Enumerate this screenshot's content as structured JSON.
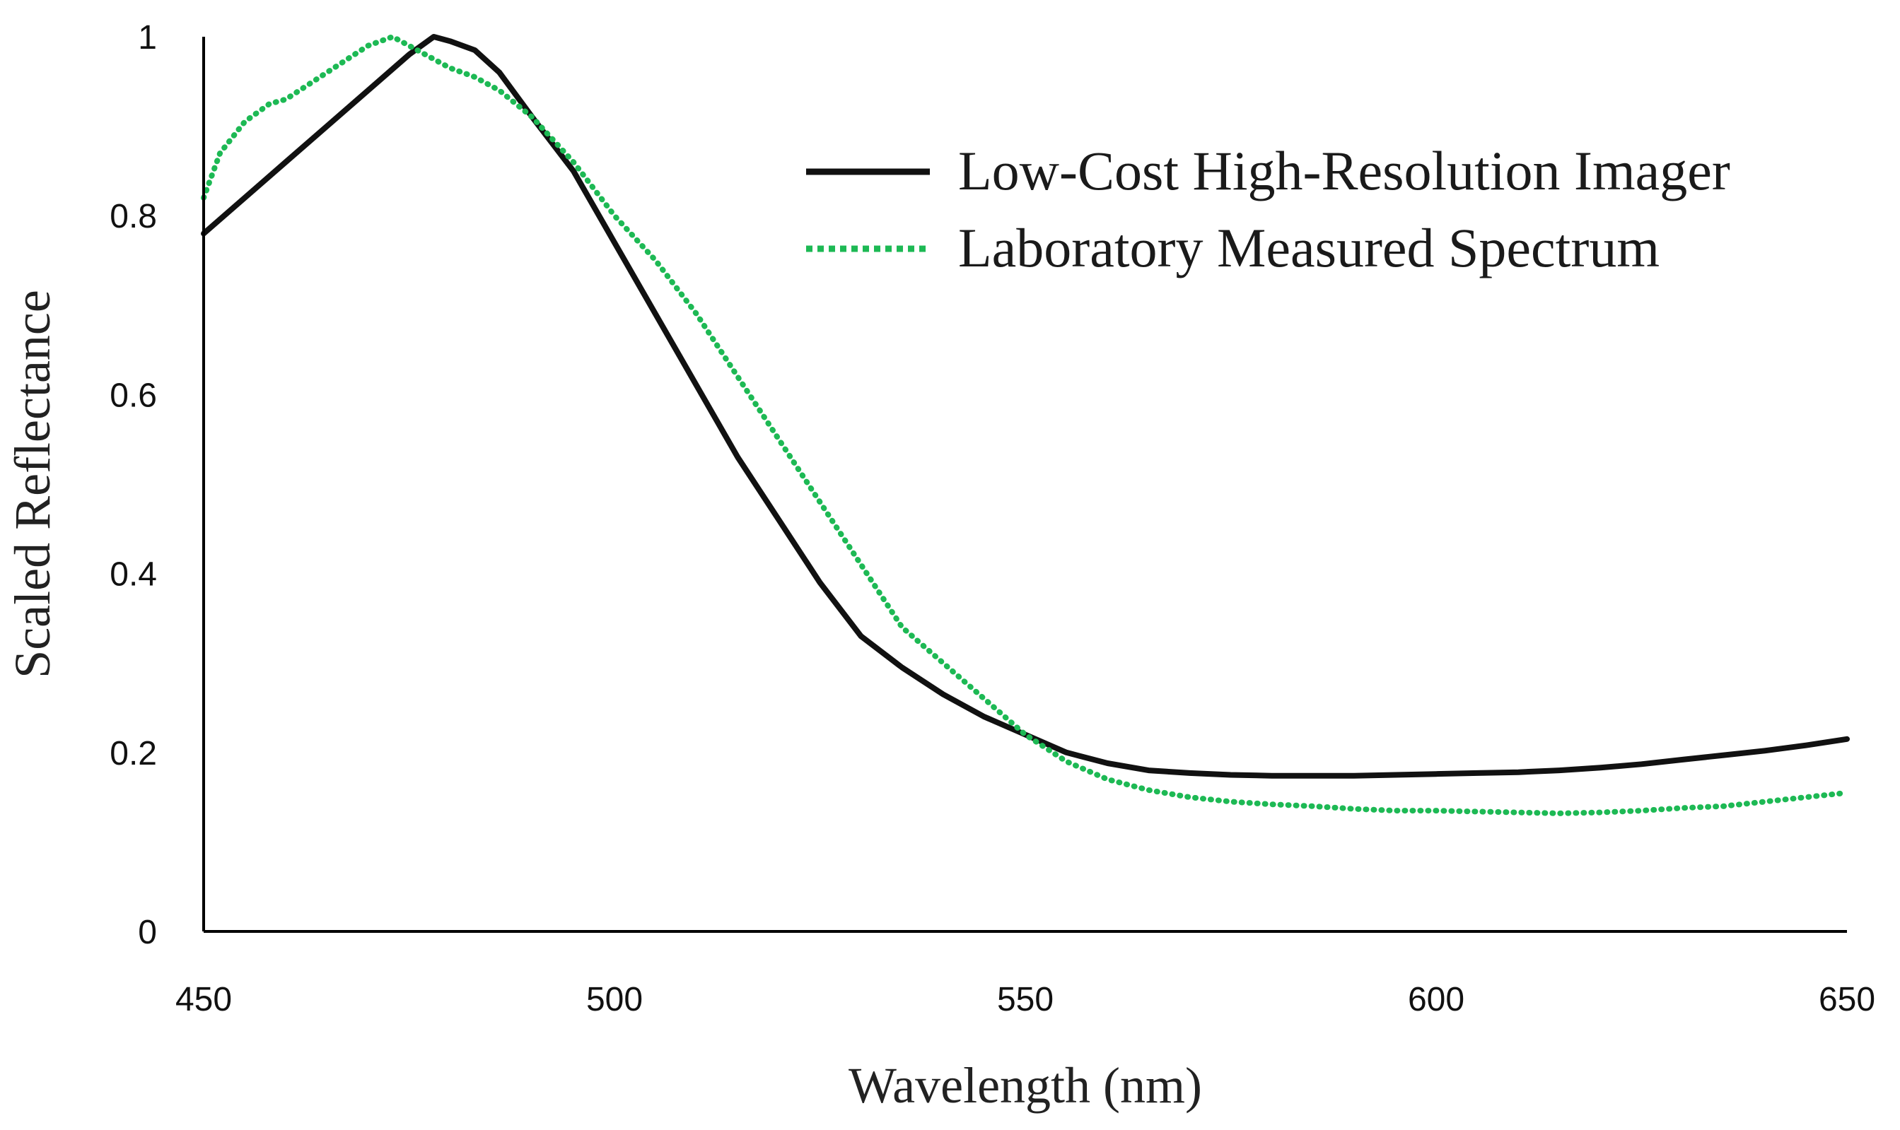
{
  "chart_data": {
    "type": "line",
    "title": "",
    "xlabel": "Wavelength (nm)",
    "ylabel": "Scaled Reflectance",
    "xlim": [
      450,
      650
    ],
    "ylim": [
      0,
      1
    ],
    "x_ticks": [
      450,
      500,
      550,
      600,
      650
    ],
    "x_tick_labels": [
      "450",
      "500",
      "550",
      "600",
      "650"
    ],
    "y_ticks": [
      0,
      0.2,
      0.4,
      0.6,
      0.8,
      1
    ],
    "y_tick_labels": [
      "0",
      "0.2",
      "0.4",
      "0.6",
      "0.8",
      "1"
    ],
    "grid": false,
    "legend_position": "top-right",
    "series": [
      {
        "name": "Low-Cost High-Resolution Imager",
        "style": "solid",
        "color": "#111111",
        "x": [
          450,
          455,
          460,
          465,
          470,
          475,
          478,
          480,
          483,
          486,
          490,
          495,
          500,
          505,
          510,
          515,
          520,
          525,
          530,
          535,
          540,
          545,
          550,
          555,
          560,
          565,
          570,
          575,
          580,
          585,
          590,
          595,
          600,
          605,
          610,
          615,
          620,
          625,
          630,
          635,
          640,
          645,
          650
        ],
        "y": [
          0.78,
          0.82,
          0.86,
          0.9,
          0.94,
          0.98,
          1.0,
          0.995,
          0.985,
          0.96,
          0.91,
          0.85,
          0.77,
          0.69,
          0.61,
          0.53,
          0.46,
          0.39,
          0.33,
          0.295,
          0.265,
          0.24,
          0.22,
          0.2,
          0.188,
          0.18,
          0.177,
          0.175,
          0.174,
          0.174,
          0.174,
          0.175,
          0.176,
          0.177,
          0.178,
          0.18,
          0.183,
          0.187,
          0.192,
          0.197,
          0.202,
          0.208,
          0.215
        ]
      },
      {
        "name": "Laboratory Measured Spectrum",
        "style": "dotted",
        "color": "#1db954",
        "x": [
          450,
          452,
          455,
          458,
          460,
          465,
          470,
          473,
          476,
          480,
          483,
          486,
          490,
          495,
          500,
          505,
          510,
          515,
          520,
          525,
          530,
          535,
          540,
          545,
          550,
          555,
          560,
          565,
          570,
          575,
          580,
          585,
          590,
          595,
          600,
          605,
          610,
          615,
          620,
          625,
          630,
          635,
          640,
          645,
          650
        ],
        "y": [
          0.82,
          0.87,
          0.905,
          0.925,
          0.93,
          0.96,
          0.99,
          1.0,
          0.985,
          0.965,
          0.955,
          0.94,
          0.91,
          0.86,
          0.8,
          0.75,
          0.69,
          0.62,
          0.55,
          0.48,
          0.41,
          0.34,
          0.3,
          0.26,
          0.22,
          0.19,
          0.17,
          0.158,
          0.15,
          0.145,
          0.142,
          0.14,
          0.137,
          0.135,
          0.135,
          0.134,
          0.133,
          0.132,
          0.133,
          0.135,
          0.138,
          0.14,
          0.145,
          0.15,
          0.155
        ]
      }
    ]
  }
}
